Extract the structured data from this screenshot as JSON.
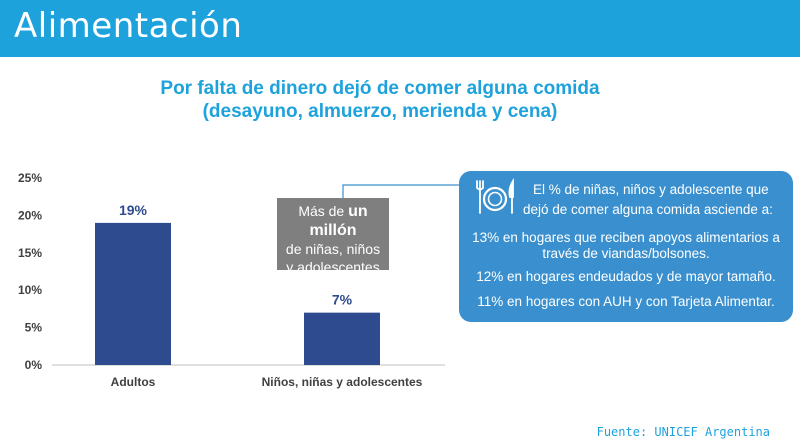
{
  "banner": {
    "title": "Alimentación"
  },
  "chart_title": {
    "line1": "Por falta de dinero dejó de comer alguna comida",
    "line2": "(desayuno, almuerzo, merienda y cena)"
  },
  "callout": {
    "line1_prefix": "Más de ",
    "line1_big": "un millón",
    "line2": "de niñas, niños",
    "line3": "y adolescentes"
  },
  "info_box": {
    "icon": "plate-cutlery-icon",
    "head1": "El % de niñas, niños y adolescente que",
    "head2": "dejó de comer alguna comida asciende a:",
    "item1_line1": "13% en hogares que reciben apoyos alimentarios a",
    "item1_line2": "través de viandas/bolsones.",
    "item2": "12% en hogares endeudados y de mayor tamaño.",
    "item3": "11% en hogares con AUH y con Tarjeta Alimentar."
  },
  "source": "Fuente: UNICEF Argentina",
  "colors": {
    "banner": "#1ea2dc",
    "bar": "#2e4b8f",
    "callout": "#7f7f7f",
    "info_box": "#3a90cf"
  },
  "chart_data": {
    "type": "bar",
    "categories": [
      "Adultos",
      "Niños, niñas y adolescentes"
    ],
    "values": [
      19,
      7
    ],
    "value_labels": [
      "19%",
      "7%"
    ],
    "y_ticks": [
      "0%",
      "5%",
      "10%",
      "15%",
      "20%",
      "25%"
    ],
    "ylim": [
      0,
      25
    ],
    "grid": false,
    "title": "Por falta de dinero dejó de comer alguna comida (desayuno, almuerzo, merienda y cena)"
  }
}
